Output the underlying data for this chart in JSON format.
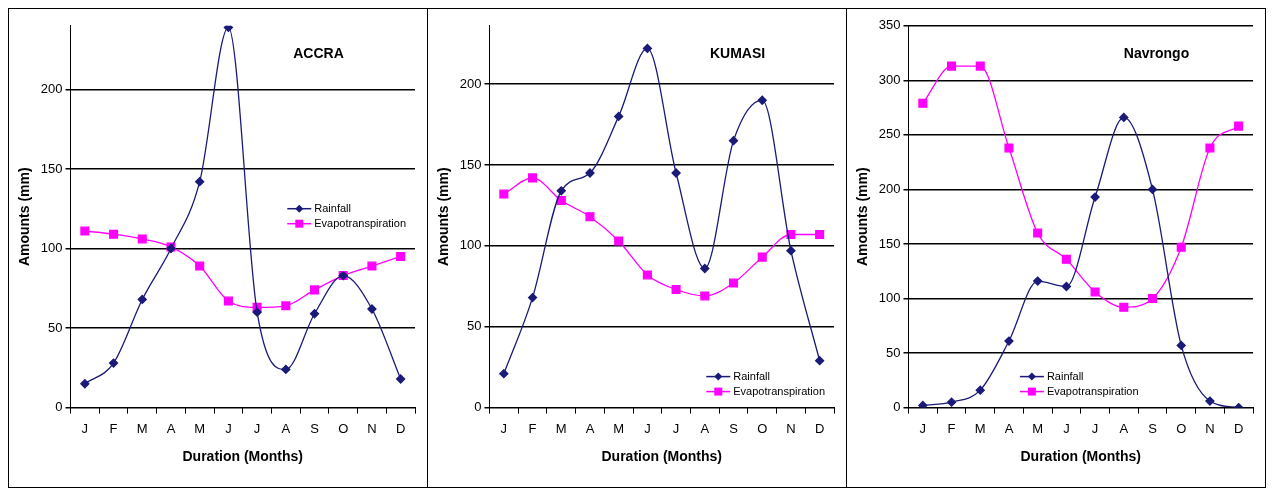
{
  "chart_data": [
    {
      "type": "line",
      "title": "ACCRA",
      "xlabel": "Duration (Months)",
      "ylabel": "Amounts (mm)",
      "categories": [
        "J",
        "F",
        "M",
        "A",
        "M",
        "J",
        "J",
        "A",
        "S",
        "O",
        "N",
        "D"
      ],
      "ylim": [
        0,
        240
      ],
      "yticks": [
        0,
        50,
        100,
        150,
        200
      ],
      "grid": "y",
      "legend": "right",
      "series": [
        {
          "name": "Rainfall",
          "color": "#1a1a78",
          "marker": "diamond",
          "values": [
            15,
            28,
            68,
            100,
            142,
            239,
            60,
            24,
            59,
            83,
            62,
            18
          ]
        },
        {
          "name": "Evapotranspiration",
          "color": "#ff00ff",
          "marker": "square",
          "values": [
            111,
            109,
            106,
            101,
            89,
            67,
            63,
            64,
            74,
            83,
            89,
            95
          ]
        }
      ]
    },
    {
      "type": "line",
      "title": "KUMASI",
      "xlabel": "Duration (Months)",
      "ylabel": "Amounts (mm)",
      "categories": [
        "J",
        "F",
        "M",
        "A",
        "M",
        "J",
        "J",
        "A",
        "S",
        "O",
        "N",
        "D"
      ],
      "ylim": [
        0,
        236
      ],
      "yticks": [
        0,
        50,
        100,
        150,
        200
      ],
      "grid": "y",
      "legend": "bottom right",
      "series": [
        {
          "name": "Rainfall",
          "color": "#1a1a78",
          "marker": "diamond",
          "values": [
            21,
            68,
            134,
            145,
            180,
            222,
            145,
            86,
            165,
            190,
            97,
            29
          ]
        },
        {
          "name": "Evapotranspiration",
          "color": "#ff00ff",
          "marker": "square",
          "values": [
            132,
            142,
            128,
            118,
            103,
            82,
            73,
            69,
            77,
            93,
            107,
            107
          ]
        }
      ]
    },
    {
      "type": "line",
      "title": "Navrongo",
      "xlabel": "Duration (Months)",
      "ylabel": "Amounts (mm)",
      "categories": [
        "J",
        "F",
        "M",
        "A",
        "M",
        "J",
        "J",
        "A",
        "S",
        "O",
        "N",
        "D"
      ],
      "ylim": [
        0,
        350
      ],
      "yticks": [
        0,
        50,
        100,
        150,
        200,
        250,
        300,
        350
      ],
      "grid": "y",
      "legend": "bottom",
      "series": [
        {
          "name": "Rainfall",
          "color": "#1a1a78",
          "marker": "diamond",
          "values": [
            2,
            5,
            16,
            61,
            116,
            111,
            193,
            266,
            200,
            57,
            6,
            0
          ]
        },
        {
          "name": "Evapotranspiration",
          "color": "#ff00ff",
          "marker": "square",
          "values": [
            279,
            313,
            313,
            238,
            160,
            136,
            106,
            92,
            100,
            147,
            238,
            258
          ]
        }
      ]
    }
  ]
}
